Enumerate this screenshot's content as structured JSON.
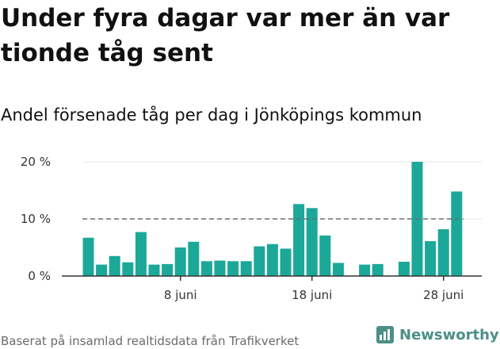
{
  "title": "Under fyra dagar var mer än var tionde tåg sent",
  "subtitle": "Andel försenade tåg per dag i Jönköpings kommun",
  "footer": "Baserat på insamlad realtidsdata från Trafikverket",
  "brand": {
    "name": "Newsworthy",
    "icon": "newsworthy-logo-icon"
  },
  "colors": {
    "bar": "#1ba899",
    "reference_line": "#6e6e6e",
    "axis": "#333333",
    "grid": "#e4e4e4"
  },
  "chart_data": {
    "type": "bar",
    "x_type": "date",
    "x": [
      "2019-06-01",
      "2019-06-02",
      "2019-06-03",
      "2019-06-04",
      "2019-06-05",
      "2019-06-06",
      "2019-06-07",
      "2019-06-08",
      "2019-06-09",
      "2019-06-10",
      "2019-06-11",
      "2019-06-12",
      "2019-06-13",
      "2019-06-14",
      "2019-06-15",
      "2019-06-16",
      "2019-06-17",
      "2019-06-18",
      "2019-06-19",
      "2019-06-20",
      "2019-06-21",
      "2019-06-22",
      "2019-06-23",
      "2019-06-24",
      "2019-06-25",
      "2019-06-26",
      "2019-06-27",
      "2019-06-28",
      "2019-06-29"
    ],
    "values": [
      6.7,
      2.0,
      3.5,
      2.4,
      7.7,
      2.0,
      2.1,
      5.0,
      6.0,
      2.6,
      2.7,
      2.6,
      2.6,
      5.2,
      5.6,
      4.8,
      12.6,
      11.9,
      7.1,
      2.3,
      null,
      2.0,
      2.1,
      null,
      2.5,
      20.0,
      6.1,
      8.2,
      14.8
    ],
    "reference_line": 10,
    "ylim": [
      0,
      20
    ],
    "y_ticks": [
      0,
      10,
      20
    ],
    "y_tick_labels": [
      "0 %",
      "10 %",
      "20 %"
    ],
    "x_ticks": [
      "2019-06-08",
      "2019-06-18",
      "2019-06-28"
    ],
    "x_tick_labels": [
      "8 juni",
      "18 juni",
      "28 juni"
    ],
    "grid": true,
    "legend": "none"
  }
}
